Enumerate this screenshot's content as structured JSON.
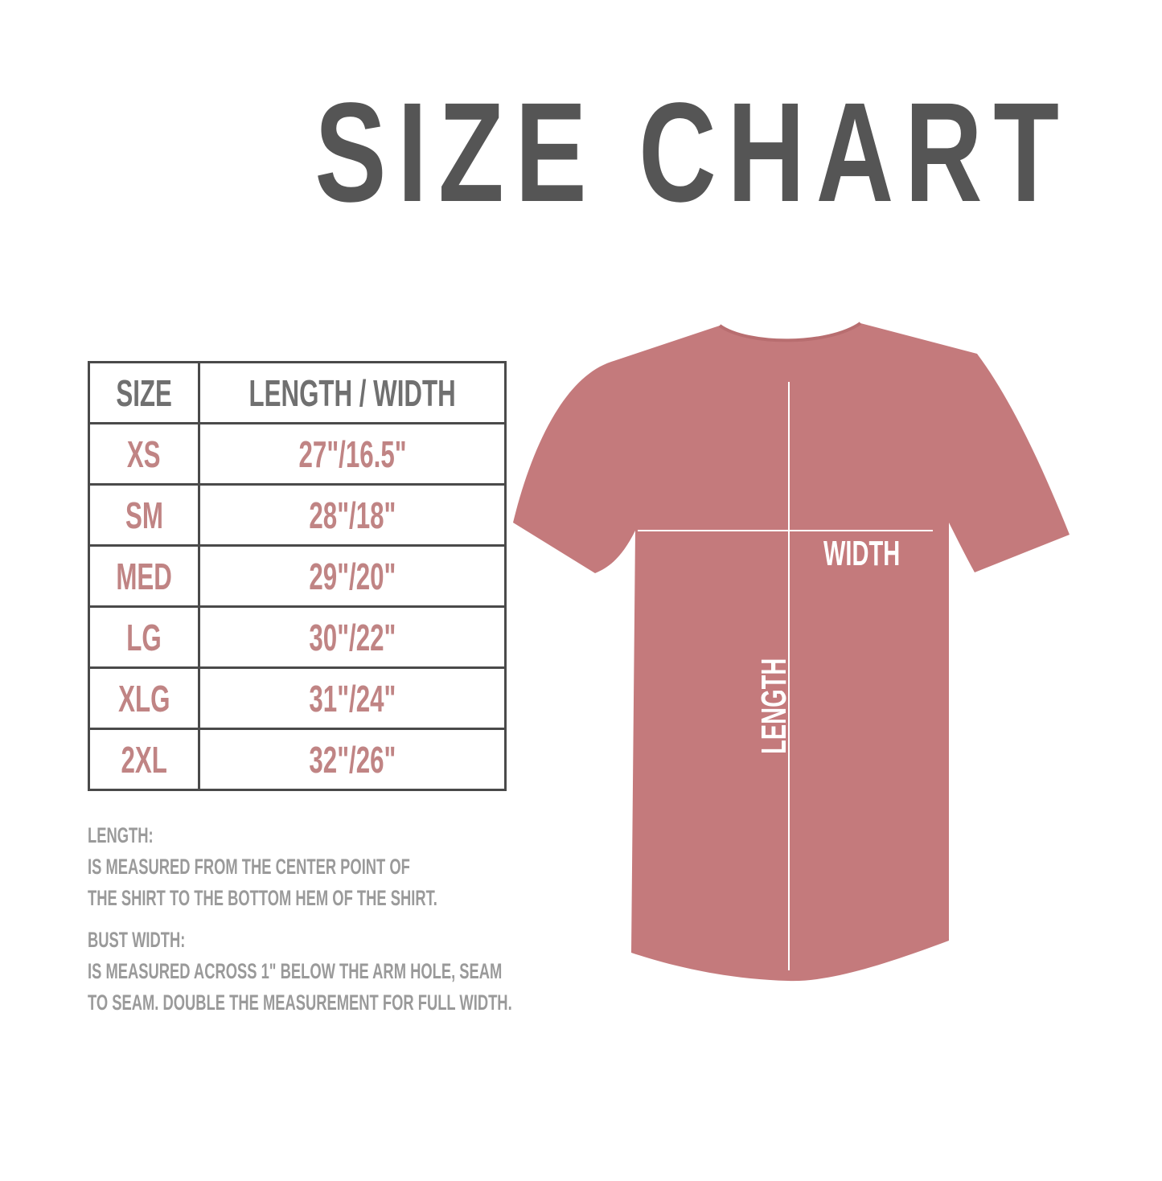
{
  "title": "SIZE CHART",
  "table": {
    "headers": [
      "SIZE",
      "LENGTH / WIDTH"
    ],
    "rows": [
      {
        "size": "XS",
        "measure": "27\"/16.5\""
      },
      {
        "size": "SM",
        "measure": "28\"/18\""
      },
      {
        "size": "MED",
        "measure": "29\"/20\""
      },
      {
        "size": "LG",
        "measure": "30\"/22\""
      },
      {
        "size": "XLG",
        "measure": "31\"/24\""
      },
      {
        "size": "2XL",
        "measure": "32\"/26\""
      }
    ]
  },
  "notes": {
    "length_heading": "LENGTH:",
    "length_line1": "IS MEASURED FROM THE CENTER POINT OF",
    "length_line2": "THE SHIRT TO THE BOTTOM HEM OF THE SHIRT.",
    "width_heading": "BUST WIDTH:",
    "width_line1": "IS MEASURED ACROSS  1\" BELOW THE ARM HOLE, SEAM",
    "width_line2": "TO SEAM. DOUBLE THE MEASUREMENT FOR FULL WIDTH."
  },
  "diagram": {
    "width_label": "WIDTH",
    "length_label": "LENGTH"
  },
  "colors": {
    "title": "#555555",
    "header_text": "#707070",
    "size_text": "#c08484",
    "shirt": "#c47a7c",
    "notes_text": "#9a9a9a"
  }
}
